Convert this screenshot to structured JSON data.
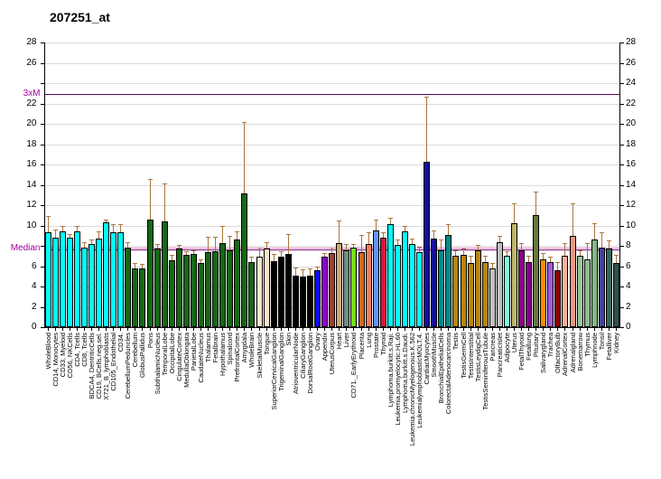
{
  "chart_data": {
    "type": "bar",
    "title": "207251_at",
    "ylim": [
      0,
      28
    ],
    "ytick_step": 2,
    "grid": true,
    "legend_position": "none",
    "median_line": {
      "label": "Median",
      "value": 7.65
    },
    "threshold_line": {
      "label": "3xM",
      "value": 22.9
    },
    "categories": [
      "WholeBlood",
      "CD14, Monocytes",
      "CD33, Myeloid",
      "CD56, NKCells",
      "CD4, Tcells",
      "CD8, Tcells",
      "BDCA4, DentriticCells",
      "CD19, BCells.neg.sel.",
      "X721_B_lymphoblasts",
      "CD105_Endothelial",
      "CD34.",
      "CerebellumPeduncles",
      "Cerebellum",
      "GlobusPallidus",
      "Pons",
      "SubthalamicNucleus",
      "TemporalLobe",
      "OccipitalLobe",
      "CingulateCortex",
      "MedullaOblongata",
      "ParietalLobe",
      "CaudateNucleus",
      "Thalamus",
      "Fetalbrain",
      "Hypothalamus",
      "Spinalcord",
      "PrefrontalCortex",
      "Amygdala",
      "WholeBrain",
      "SkeletalMuscle",
      "Tongue",
      "SuperiorCervicalGanglion",
      "TrigeminalGanglion",
      "Skin",
      "AtrioventricularNode",
      "CiliaryGanglion",
      "DorsalRootGanglion",
      "Ovary",
      "Appendix",
      "UterusCorpus",
      "Heart",
      "Liver",
      "CD71._EarlyErythroid",
      "Placenta",
      "Lung",
      "Prostate",
      "Thyroid",
      "Lymphoma.burkitt.s.Raji.",
      "Leukemia.promyelocytic.HL.60",
      "Lymphoma.burkitt.s.Daudi.",
      "Leukemia.chronicMyelogenous.K.562",
      "LeukemialymphoblasticMOLT.4.",
      "CardiacMyocytes",
      "SmoothMuscle",
      "BronchialEpithelialCells",
      "ColorectalAdenocarcinoma",
      "Testis",
      "TestisGermCell",
      "TestisInterstitial",
      "TestisLeydigCell",
      "TestisSeminiferousTubule",
      "Pancreas",
      "PancreaticIslet",
      "Adipocyte",
      "Uterus",
      "FetalThyroid",
      "Fetallung",
      "Pituitary",
      "Salivarygland",
      "Trachea",
      "OlfactoryBulb",
      "AdrenalCortex",
      "Adrenalgland",
      "Bonemarrow",
      "Thymus",
      "Lymphnode",
      "Tonsil",
      "Fetalliver",
      "Kidney"
    ],
    "values": [
      9.3,
      8.8,
      9.4,
      8.8,
      9.4,
      7.8,
      8.2,
      8.7,
      10.3,
      9.3,
      9.3,
      7.8,
      5.8,
      5.8,
      10.6,
      7.7,
      10.4,
      6.6,
      7.7,
      7.1,
      7.2,
      6.3,
      7.4,
      7.5,
      8.3,
      7.6,
      8.6,
      13.2,
      6.4,
      6.9,
      7.7,
      6.5,
      6.9,
      7.2,
      5.1,
      5.0,
      5.1,
      5.6,
      6.9,
      7.3,
      8.3,
      7.6,
      7.8,
      7.4,
      8.2,
      9.5,
      8.8,
      10.1,
      8.1,
      9.4,
      8.2,
      7.4,
      16.3,
      8.7,
      7.6,
      9.1,
      7.0,
      7.1,
      6.3,
      7.6,
      6.4,
      5.8,
      8.4,
      7.0,
      10.2,
      7.6,
      6.4,
      11.0,
      6.7,
      6.4,
      5.6,
      7.0,
      9.0,
      7.0,
      6.7,
      8.6,
      7.8,
      7.7,
      6.3
    ],
    "error_tops": [
      10.9,
      9.6,
      10.0,
      9.2,
      10.0,
      8.4,
      8.6,
      9.4,
      10.6,
      10.1,
      10.1,
      8.4,
      6.3,
      6.2,
      14.6,
      8.2,
      14.1,
      7.1,
      8.1,
      7.5,
      7.6,
      6.7,
      8.9,
      8.9,
      10.0,
      9.0,
      9.4,
      20.2,
      6.9,
      7.8,
      8.4,
      7.2,
      7.5,
      9.2,
      5.9,
      5.7,
      5.8,
      6.0,
      7.3,
      7.8,
      10.5,
      8.2,
      8.2,
      9.1,
      9.3,
      10.6,
      9.3,
      10.8,
      8.6,
      10.0,
      8.7,
      7.9,
      22.7,
      9.5,
      8.6,
      10.1,
      7.6,
      7.7,
      7.0,
      8.1,
      7.0,
      6.3,
      9.0,
      7.5,
      12.2,
      8.3,
      7.0,
      13.3,
      7.3,
      6.9,
      6.4,
      8.3,
      12.2,
      7.6,
      8.3,
      10.2,
      9.3,
      8.5,
      7.1
    ],
    "bar_colors": [
      "#00FFFF",
      "#00FFFF",
      "#00FFFF",
      "#00FFFF",
      "#00FFFF",
      "#00FFFF",
      "#00FFFF",
      "#00FFFF",
      "#00FFFF",
      "#00FFFF",
      "#00FFFF",
      "#156915",
      "#156915",
      "#156915",
      "#156915",
      "#156915",
      "#156915",
      "#156915",
      "#156915",
      "#156915",
      "#156915",
      "#156915",
      "#156915",
      "#156915",
      "#156915",
      "#156915",
      "#156915",
      "#156915",
      "#156915",
      "#F9E4CC",
      "#F9E4CC",
      "#000000",
      "#000000",
      "#000000",
      "#000000",
      "#000000",
      "#000000",
      "#0A0AF0",
      "#9400D3",
      "#A0402F",
      "#CEA878",
      "#6F8F80",
      "#76E013",
      "#D2691E",
      "#F08060",
      "#6495ED",
      "#DC143C",
      "#00FFFF",
      "#00FFFF",
      "#00FFFF",
      "#00FFFF",
      "#00FFFF",
      "#10109B",
      "#10109B",
      "#008B8B",
      "#008B8B",
      "#B8860B",
      "#B8860B",
      "#B8860B",
      "#B8860B",
      "#B8860B",
      "#C0C0C0",
      "#C0C0C0",
      "#7FFFD4",
      "#BDB76B",
      "#8B008B",
      "#8B008B",
      "#68793D",
      "#FF8C00",
      "#A35BDD",
      "#8B0000",
      "#F4B29A",
      "#EC9980",
      "#9CC49C",
      "#8FBC8F",
      "#84B884",
      "#42429E",
      "#336659",
      "#2F4F4F"
    ],
    "colors": {
      "background": "#FFFFFF",
      "grid": "#DBDBDB",
      "axis": "#000000",
      "error_bar": "#A8763E",
      "median_line": "#7A0E7A",
      "median_highlight": "#E87FC0",
      "threshold_line": "#5C075C",
      "line_labels": "#A000A0"
    }
  }
}
